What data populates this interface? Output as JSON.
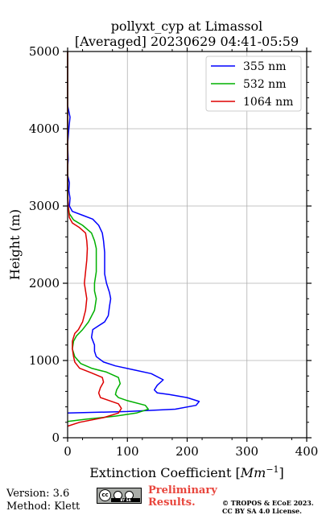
{
  "chart_data": {
    "type": "line",
    "title": "pollyxt_cyp at Limassol",
    "subtitle": "[Averaged] 20230629 04:41-05:59",
    "xlabel": "Extinction Coefficient [",
    "xlabel_unit": "Mm",
    "xlabel_unit_exp": "−1",
    "xlabel_close": "]",
    "ylabel": "Height (m)",
    "xlim": [
      0,
      400
    ],
    "ylim": [
      0,
      5000
    ],
    "xticks": [
      0,
      100,
      200,
      300,
      400
    ],
    "yticks": [
      0,
      1000,
      2000,
      3000,
      4000,
      5000
    ],
    "grid": true,
    "legend_position": "top-right",
    "series": [
      {
        "name": "355 nm",
        "color": "#0000ff",
        "points": [
          [
            0,
            320
          ],
          [
            100,
            340
          ],
          [
            180,
            370
          ],
          [
            215,
            420
          ],
          [
            220,
            470
          ],
          [
            200,
            520
          ],
          [
            170,
            560
          ],
          [
            150,
            580
          ],
          [
            145,
            620
          ],
          [
            150,
            680
          ],
          [
            160,
            750
          ],
          [
            140,
            830
          ],
          [
            110,
            880
          ],
          [
            80,
            930
          ],
          [
            60,
            980
          ],
          [
            48,
            1050
          ],
          [
            45,
            1120
          ],
          [
            45,
            1200
          ],
          [
            40,
            1300
          ],
          [
            42,
            1400
          ],
          [
            52,
            1450
          ],
          [
            62,
            1500
          ],
          [
            68,
            1580
          ],
          [
            70,
            1700
          ],
          [
            72,
            1800
          ],
          [
            70,
            1880
          ],
          [
            65,
            2000
          ],
          [
            62,
            2120
          ],
          [
            62,
            2250
          ],
          [
            62,
            2400
          ],
          [
            60,
            2550
          ],
          [
            58,
            2650
          ],
          [
            52,
            2750
          ],
          [
            42,
            2830
          ],
          [
            25,
            2880
          ],
          [
            8,
            2930
          ],
          [
            3,
            3000
          ],
          [
            4,
            3100
          ],
          [
            2,
            3200
          ],
          [
            3,
            3300
          ],
          [
            0,
            3400
          ],
          [
            0,
            3500
          ],
          [
            1,
            3600
          ],
          [
            0,
            3800
          ],
          [
            2,
            4000
          ],
          [
            4,
            4150
          ],
          [
            0,
            4300
          ],
          [
            0,
            4600
          ],
          [
            0,
            4800
          ],
          [
            0,
            5000
          ]
        ]
      },
      {
        "name": "532 nm",
        "color": "#00b000",
        "points": [
          [
            0,
            210
          ],
          [
            30,
            240
          ],
          [
            80,
            280
          ],
          [
            115,
            320
          ],
          [
            135,
            370
          ],
          [
            130,
            420
          ],
          [
            100,
            480
          ],
          [
            85,
            520
          ],
          [
            80,
            560
          ],
          [
            82,
            620
          ],
          [
            88,
            700
          ],
          [
            85,
            780
          ],
          [
            65,
            850
          ],
          [
            40,
            900
          ],
          [
            22,
            960
          ],
          [
            12,
            1050
          ],
          [
            8,
            1150
          ],
          [
            10,
            1250
          ],
          [
            15,
            1320
          ],
          [
            25,
            1400
          ],
          [
            35,
            1500
          ],
          [
            45,
            1650
          ],
          [
            48,
            1800
          ],
          [
            45,
            1900
          ],
          [
            45,
            2000
          ],
          [
            48,
            2150
          ],
          [
            48,
            2300
          ],
          [
            48,
            2450
          ],
          [
            45,
            2550
          ],
          [
            40,
            2650
          ],
          [
            25,
            2750
          ],
          [
            10,
            2820
          ],
          [
            3,
            2900
          ],
          [
            1,
            3000
          ],
          [
            0,
            3100
          ],
          [
            0,
            3500
          ],
          [
            0,
            4000
          ],
          [
            0,
            4500
          ],
          [
            0,
            5000
          ]
        ]
      },
      {
        "name": "1064 nm",
        "color": "#dd0000",
        "points": [
          [
            0,
            150
          ],
          [
            20,
            200
          ],
          [
            60,
            260
          ],
          [
            85,
            320
          ],
          [
            90,
            380
          ],
          [
            85,
            440
          ],
          [
            70,
            480
          ],
          [
            55,
            520
          ],
          [
            52,
            580
          ],
          [
            55,
            650
          ],
          [
            60,
            720
          ],
          [
            58,
            780
          ],
          [
            40,
            840
          ],
          [
            20,
            900
          ],
          [
            12,
            980
          ],
          [
            10,
            1050
          ],
          [
            8,
            1150
          ],
          [
            8,
            1250
          ],
          [
            12,
            1350
          ],
          [
            18,
            1400
          ],
          [
            25,
            1500
          ],
          [
            30,
            1650
          ],
          [
            32,
            1800
          ],
          [
            30,
            1900
          ],
          [
            28,
            2000
          ],
          [
            30,
            2150
          ],
          [
            32,
            2300
          ],
          [
            33,
            2450
          ],
          [
            32,
            2550
          ],
          [
            30,
            2650
          ],
          [
            20,
            2720
          ],
          [
            8,
            2780
          ],
          [
            3,
            2850
          ],
          [
            1,
            3000
          ],
          [
            0,
            3200
          ],
          [
            0,
            3500
          ],
          [
            0,
            4000
          ],
          [
            0,
            4500
          ],
          [
            0,
            5000
          ]
        ]
      }
    ]
  },
  "footer": {
    "version": "Version: 3.6",
    "method": "Method: Klett",
    "preliminary_line1": "Preliminary",
    "preliminary_line2": "Results.",
    "copyright_line1": "© TROPOS & ECoE 2023.",
    "copyright_line2": "CC BY SA 4.0 License.",
    "license_badge_text": "BY SA"
  }
}
